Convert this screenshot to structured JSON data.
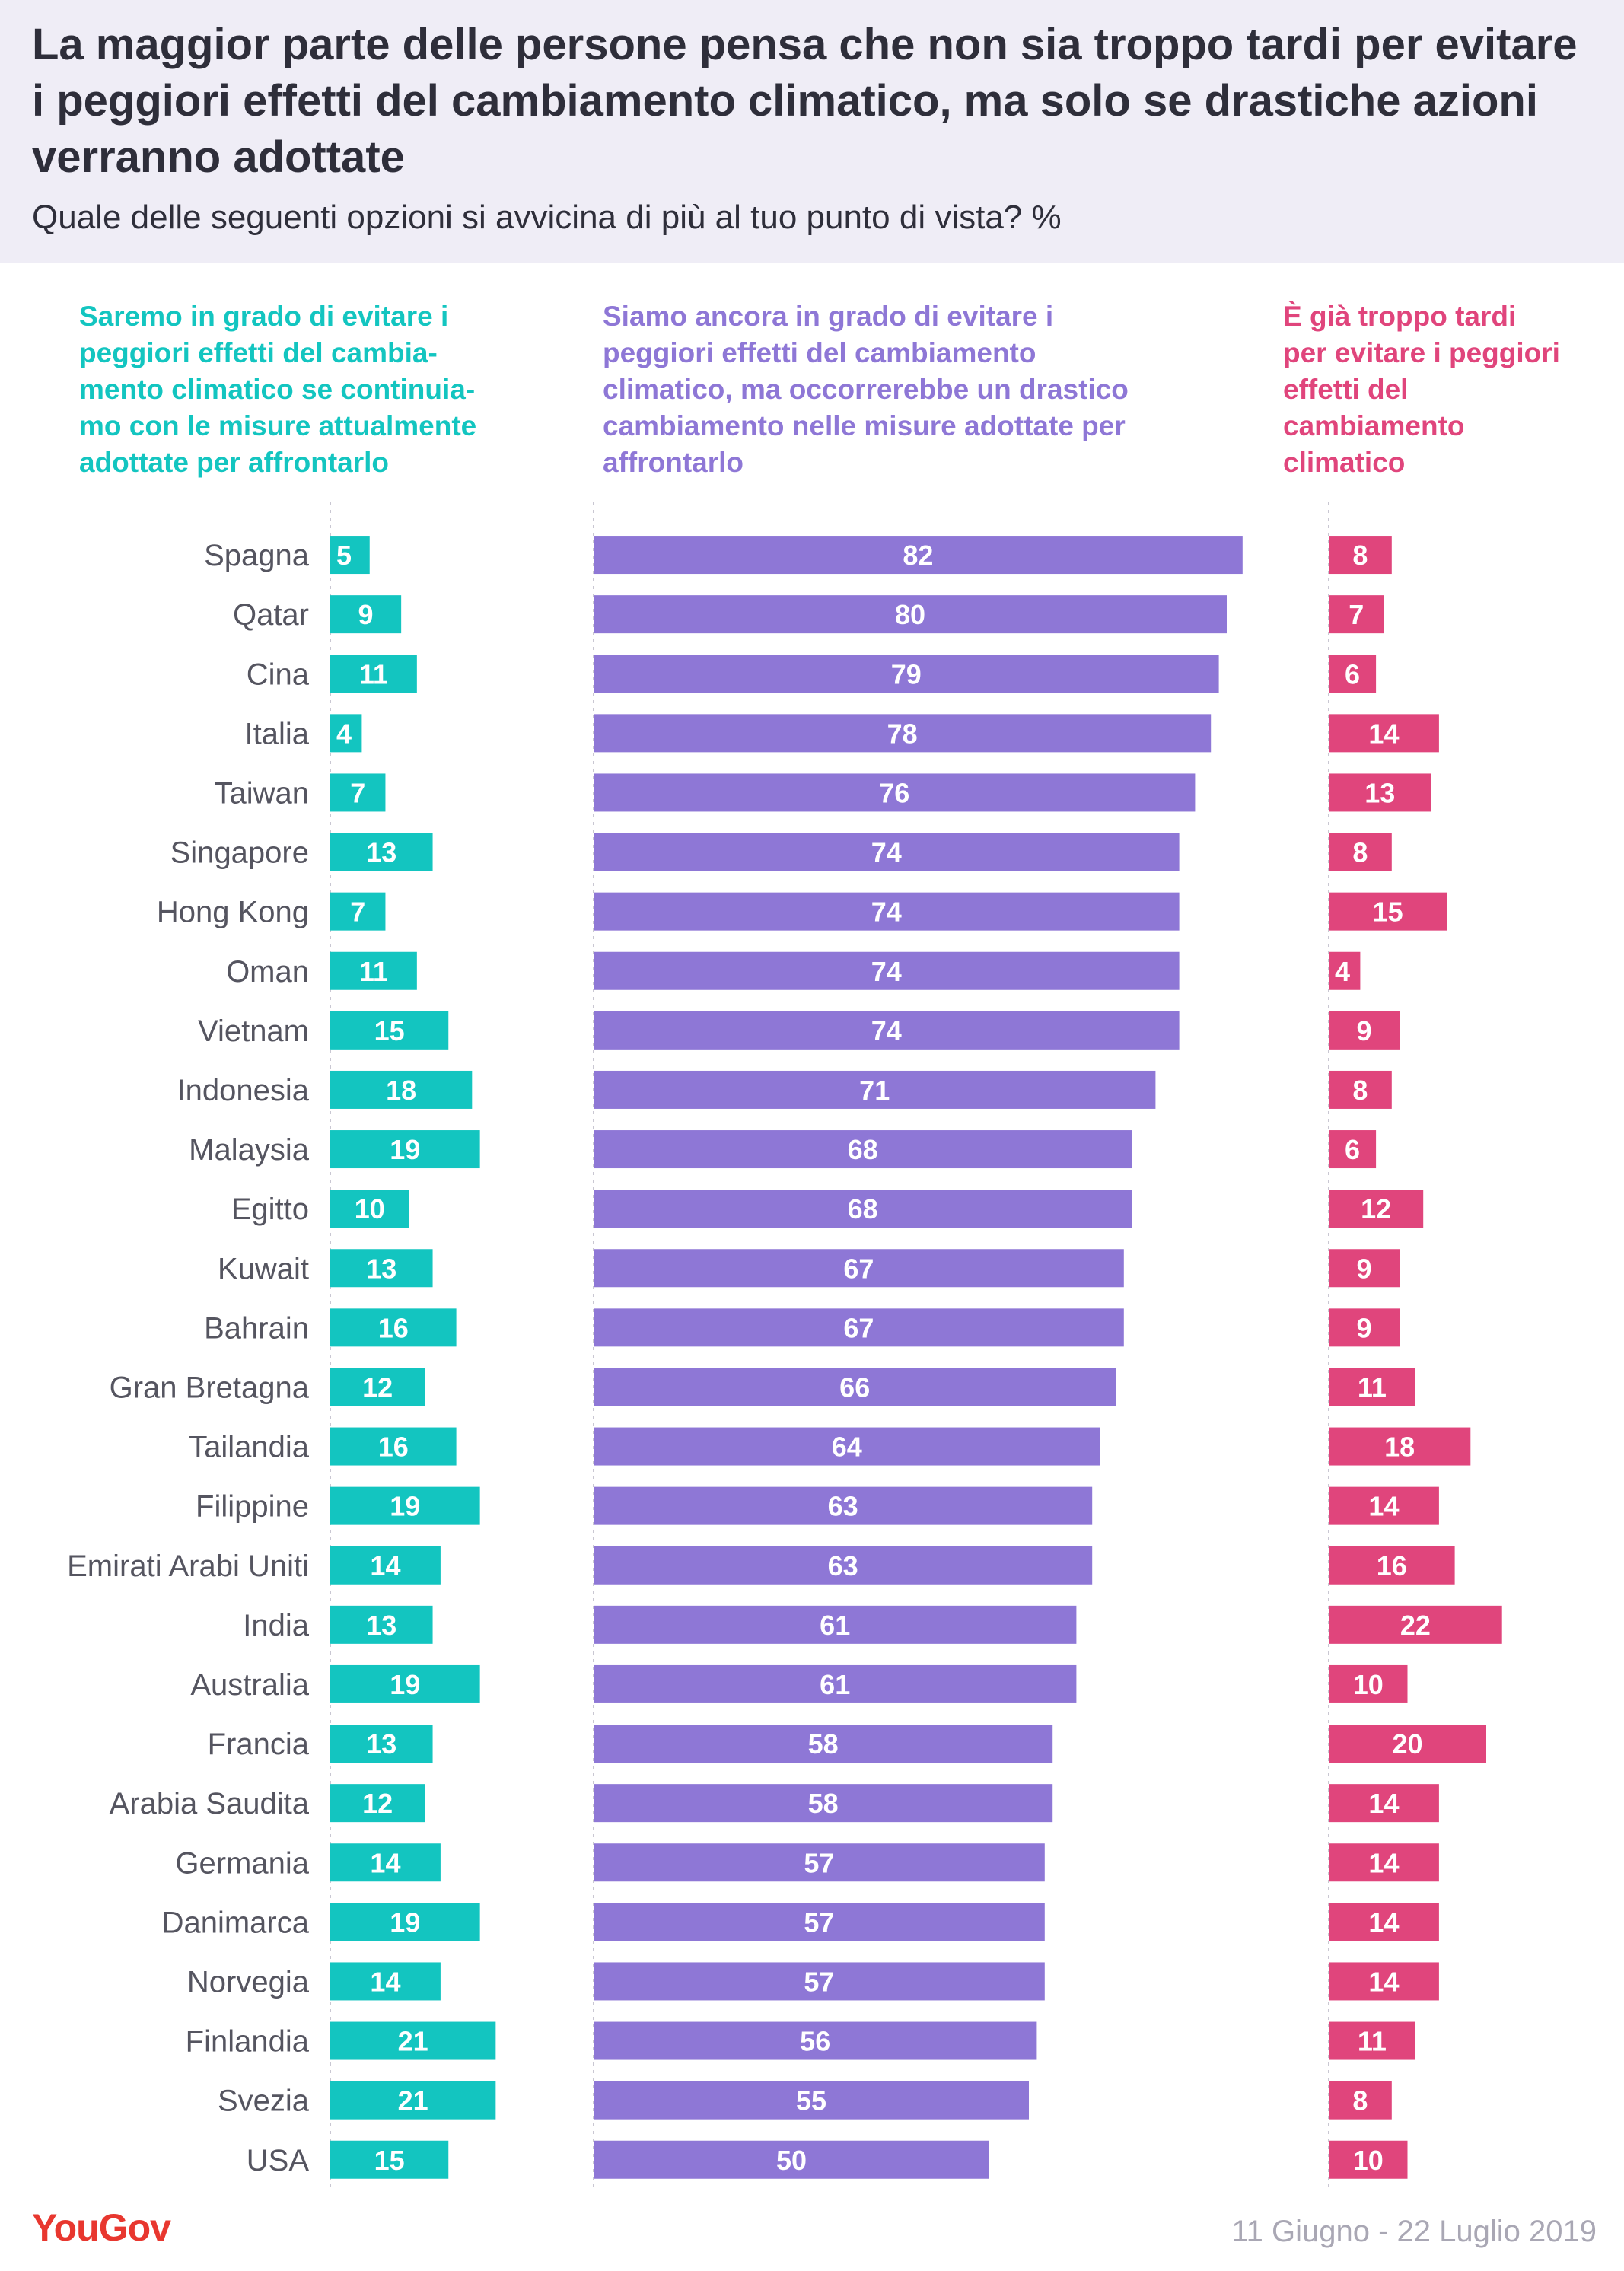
{
  "header": {
    "title": "La maggior parte delle persone pensa che non sia troppo tardi per evitare i peggiori effetti del cambiamento climatico, ma solo se drastiche azioni verranno adottate",
    "subtitle": "Quale delle seguenti opzioni si avvicina di più al tuo punto di vista? %"
  },
  "footer": {
    "logo": "YouGov",
    "date": "11 Giugno - 22 Luglio 2019"
  },
  "colors": {
    "teal": "#13c5c0",
    "purple": "#8e77d6",
    "pink": "#e0457c",
    "header_bg": "#efedf6"
  },
  "chart_data": {
    "type": "bar",
    "orientation": "horizontal",
    "categories": [
      "Spagna",
      "Qatar",
      "Cina",
      "Italia",
      "Taiwan",
      "Singapore",
      "Hong Kong",
      "Oman",
      "Vietnam",
      "Indonesia",
      "Malaysia",
      "Egitto",
      "Kuwait",
      "Bahrain",
      "Gran Bretagna",
      "Tailandia",
      "Filippine",
      "Emirati Arabi Uniti",
      "India",
      "Australia",
      "Francia",
      "Arabia Saudita",
      "Germania",
      "Danimarca",
      "Norvegia",
      "Finlandia",
      "Svezia",
      "USA"
    ],
    "series": [
      {
        "name": "Saremo in grado di evitare i peggiori effetti del cambiamento climatico se continuiamo con le misure attualmente adottate per affrontarlo",
        "name_lines": [
          "Saremo in grado di evitare i",
          "peggiori effetti del cambia-",
          "mento climatico se continuia-",
          "mo con le misure attualmente",
          "adottate per affrontarlo"
        ],
        "color": "#13c5c0",
        "values": [
          5,
          9,
          11,
          4,
          7,
          13,
          7,
          11,
          15,
          18,
          19,
          10,
          13,
          16,
          12,
          16,
          19,
          14,
          13,
          19,
          13,
          12,
          14,
          19,
          14,
          21,
          21,
          15
        ]
      },
      {
        "name": "Siamo ancora in grado di evitare i peggiori effetti del cambiamento climatico, ma occorrerebbe un drastico cambiamento nelle misure adottate per affrontarlo",
        "name_lines": [
          "Siamo ancora in grado di evitare i",
          "peggiori effetti del cambiamento",
          "climatico, ma occorrerebbe un drastico",
          "cambiamento nelle misure adottate per",
          "affrontarlo"
        ],
        "color": "#8e77d6",
        "values": [
          82,
          80,
          79,
          78,
          76,
          74,
          74,
          74,
          74,
          71,
          68,
          68,
          67,
          67,
          66,
          64,
          63,
          63,
          61,
          61,
          58,
          58,
          57,
          57,
          57,
          56,
          55,
          50
        ]
      },
      {
        "name": "È già troppo tardi per evitare i peggiori effetti del cambiamento climatico",
        "name_lines": [
          "È già troppo tardi",
          "per evitare i peggiori",
          "effetti del",
          "cambiamento",
          "climatico"
        ],
        "color": "#e0457c",
        "values": [
          8,
          7,
          6,
          14,
          13,
          8,
          15,
          4,
          9,
          8,
          6,
          12,
          9,
          9,
          11,
          18,
          14,
          16,
          22,
          10,
          20,
          14,
          14,
          14,
          14,
          11,
          8,
          10
        ]
      }
    ],
    "unit": "%"
  }
}
